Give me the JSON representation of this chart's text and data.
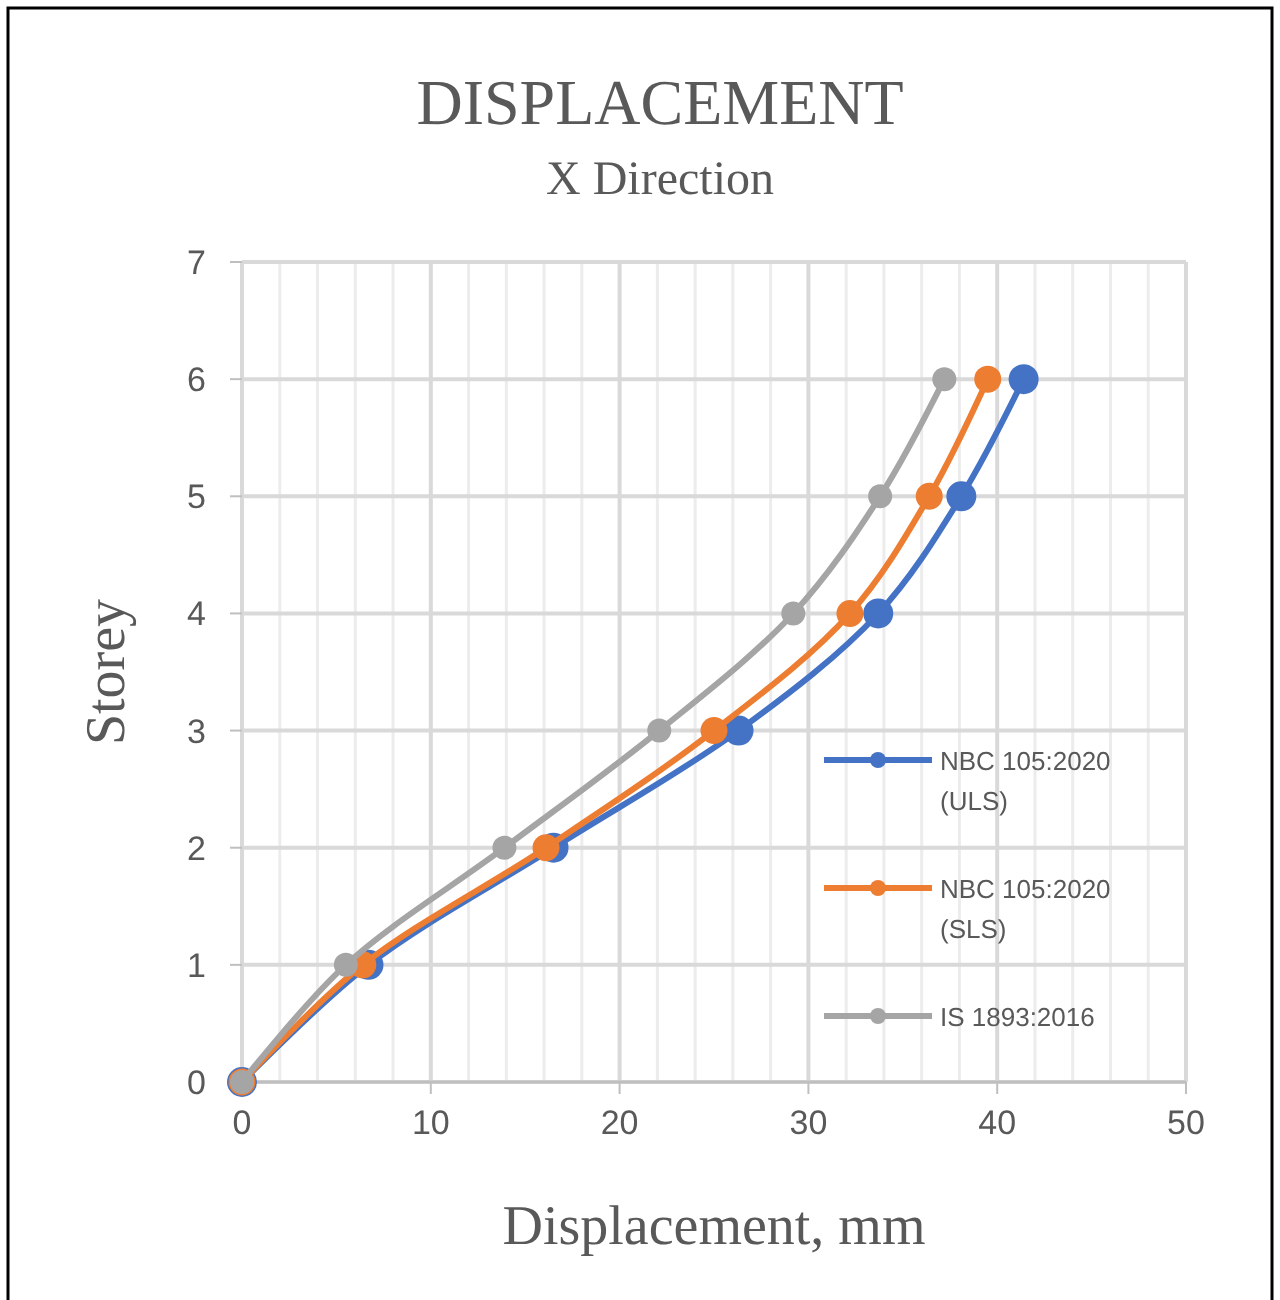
{
  "chart_data": {
    "type": "line",
    "title": "DISPLACEMENT",
    "subtitle": "X Direction",
    "xlabel": "Displacement, mm",
    "ylabel": "Storey",
    "xlim": [
      0,
      50
    ],
    "ylim": [
      0,
      7
    ],
    "xticks": [
      0,
      {
        "value": 2,
        "label": null
      },
      {
        "value": 4,
        "label": null
      },
      {
        "value": 6,
        "label": null
      },
      {
        "value": 8,
        "label": null
      },
      10,
      {
        "value": 12,
        "label": null
      },
      {
        "value": 14,
        "label": null
      },
      {
        "value": 16,
        "label": null
      },
      {
        "value": 18,
        "label": null
      },
      20,
      {
        "value": 22,
        "label": null
      },
      {
        "value": 24,
        "label": null
      },
      {
        "value": 26,
        "label": null
      },
      {
        "value": 28,
        "label": null
      },
      30,
      {
        "value": 32,
        "label": null
      },
      {
        "value": 34,
        "label": null
      },
      {
        "value": 36,
        "label": null
      },
      {
        "value": 38,
        "label": null
      },
      40,
      {
        "value": 42,
        "label": null
      },
      {
        "value": 44,
        "label": null
      },
      {
        "value": 46,
        "label": null
      },
      {
        "value": 48,
        "label": null
      },
      50
    ],
    "yticks": [
      0,
      1,
      2,
      3,
      4,
      5,
      6,
      7
    ],
    "grid": true,
    "legend": "right",
    "marker": "circle",
    "line_style": "solid",
    "series": [
      {
        "name": "NBC 105:2020 (ULS)",
        "color": "#4472c4",
        "x": [
          0,
          6.7,
          16.5,
          26.3,
          33.7,
          38.1,
          41.4
        ],
        "values": [
          0,
          1,
          2,
          3,
          4,
          5,
          6
        ]
      },
      {
        "name": "NBC 105:2020 (SLS)",
        "color": "#ed7d31",
        "x": [
          0,
          6.4,
          16.1,
          25.0,
          32.2,
          36.4,
          39.5
        ],
        "values": [
          0,
          1,
          2,
          3,
          4,
          5,
          6
        ]
      },
      {
        "name": "IS 1893:2016",
        "color": "#a5a5a5",
        "x": [
          0,
          5.5,
          13.9,
          22.1,
          29.2,
          33.8,
          37.2
        ],
        "values": [
          0,
          1,
          2,
          3,
          4,
          5,
          6
        ]
      }
    ]
  }
}
